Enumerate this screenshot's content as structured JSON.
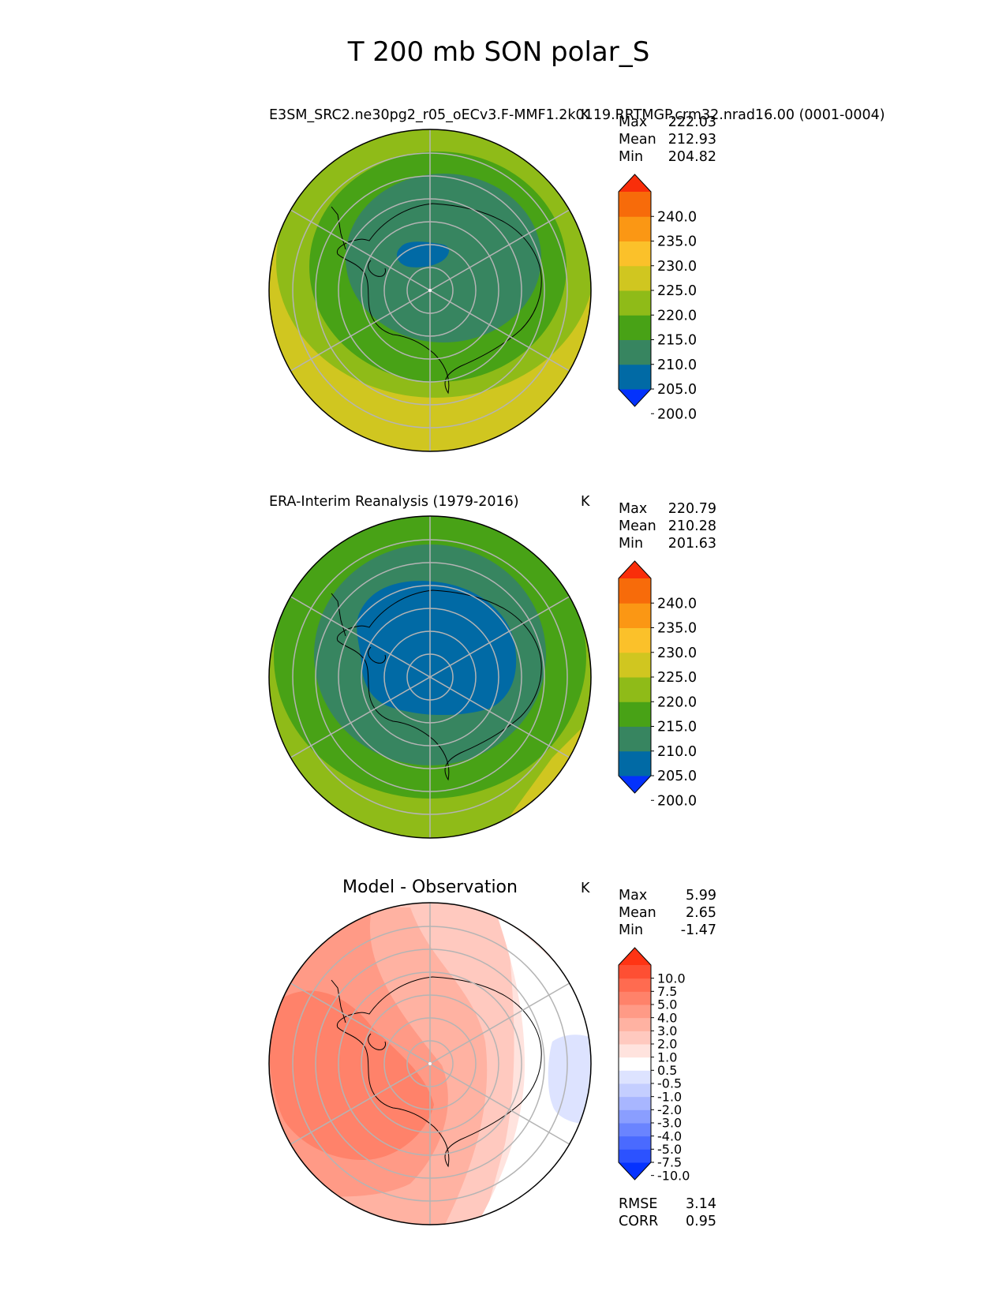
{
  "figure": {
    "title": "T 200 mb SON polar_S"
  },
  "chart_data": [
    {
      "type": "polar-contour-map",
      "title": "E3SM_SRC2.ne30pg2_r05_oECv3.F-MMF1.2k0119.RRTMGP.crm32.nrad16.00 (0001-0004)",
      "units": "K",
      "stats": [
        {
          "label": "Max",
          "value": "222.03"
        },
        {
          "label": "Mean",
          "value": "212.93"
        },
        {
          "label": "Min",
          "value": "204.82"
        }
      ],
      "colorbar": {
        "ticks": [
          "240.0",
          "235.0",
          "230.0",
          "225.0",
          "220.0",
          "215.0",
          "210.0",
          "205.0",
          "200.0"
        ],
        "colors": [
          "#0432fc",
          "#016aa5",
          "#378560",
          "#48a216",
          "#8fbb18",
          "#d0c620",
          "#fbc12a",
          "#fb9714",
          "#f76b0a",
          "#f92e0a"
        ]
      },
      "bands": [
        {
          "level": 200,
          "color": "#016aa5"
        },
        {
          "level": 205,
          "color": "#378560"
        },
        {
          "level": 210,
          "color": "#48a216"
        },
        {
          "level": 215,
          "color": "#8fbb18"
        },
        {
          "level": 220,
          "color": "#d0c620"
        }
      ]
    },
    {
      "type": "polar-contour-map",
      "title": "ERA-Interim Reanalysis (1979-2016)",
      "units": "K",
      "stats": [
        {
          "label": "Max",
          "value": "220.79"
        },
        {
          "label": "Mean",
          "value": "210.28"
        },
        {
          "label": "Min",
          "value": "201.63"
        }
      ],
      "colorbar": {
        "ticks": [
          "240.0",
          "235.0",
          "230.0",
          "225.0",
          "220.0",
          "215.0",
          "210.0",
          "205.0",
          "200.0"
        ],
        "colors": [
          "#0432fc",
          "#016aa5",
          "#378560",
          "#48a216",
          "#8fbb18",
          "#d0c620",
          "#fbc12a",
          "#fb9714",
          "#f76b0a",
          "#f92e0a"
        ]
      },
      "bands": [
        {
          "level": 200,
          "color": "#016aa5"
        },
        {
          "level": 205,
          "color": "#378560"
        },
        {
          "level": 210,
          "color": "#48a216"
        },
        {
          "level": 215,
          "color": "#8fbb18"
        },
        {
          "level": 220,
          "color": "#d0c620"
        }
      ]
    },
    {
      "type": "polar-contour-map",
      "title": "Model - Observation",
      "units": "K",
      "stats": [
        {
          "label": "Max",
          "value": "5.99"
        },
        {
          "label": "Mean",
          "value": "2.65"
        },
        {
          "label": "Min",
          "value": "-1.47"
        }
      ],
      "footer_stats": [
        {
          "label": "RMSE",
          "value": "3.14"
        },
        {
          "label": "CORR",
          "value": "0.95"
        }
      ],
      "colorbar": {
        "ticks": [
          "10.0",
          "7.5",
          "5.0",
          "4.0",
          "3.0",
          "2.0",
          "1.0",
          "0.5",
          "-0.5",
          "-1.0",
          "-2.0",
          "-3.0",
          "-4.0",
          "-5.0",
          "-7.5",
          "-10.0"
        ],
        "colors": [
          "#0532ff",
          "#2c52ff",
          "#4a6aff",
          "#6a84ff",
          "#8a9eff",
          "#a8b6ff",
          "#c4ceff",
          "#dde3ff",
          "#ffffff",
          "#ffe3de",
          "#ffc9bf",
          "#ffb2a2",
          "#ff9a86",
          "#ff826a",
          "#ff6b50",
          "#fe4f33",
          "#ff3414"
        ]
      },
      "bands": [
        {
          "level": -1.0,
          "color": "#dde3ff"
        },
        {
          "level": 0.5,
          "color": "#ffffff"
        },
        {
          "level": 1.0,
          "color": "#ffe3de"
        },
        {
          "level": 2.0,
          "color": "#ffc9bf"
        },
        {
          "level": 3.0,
          "color": "#ffb2a2"
        },
        {
          "level": 4.0,
          "color": "#ff9a86"
        },
        {
          "level": 5.0,
          "color": "#ff826a"
        }
      ]
    }
  ]
}
